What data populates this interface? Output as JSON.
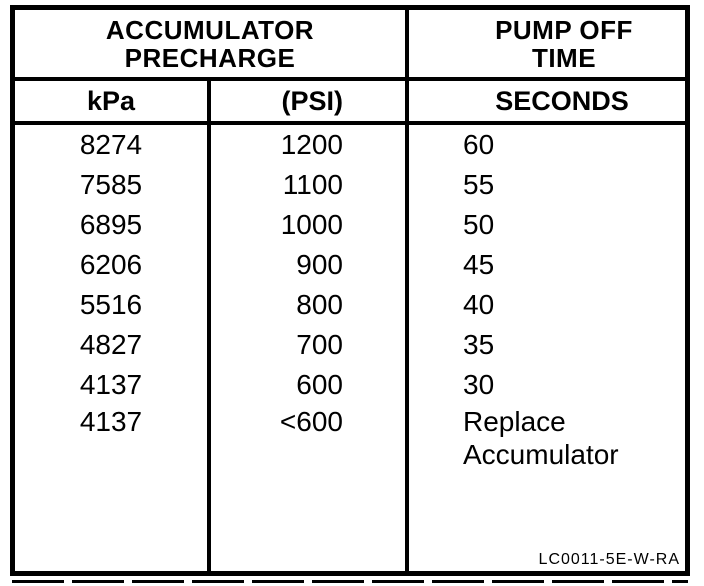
{
  "page": {
    "background": "#ffffff",
    "ink_color": "#000000"
  },
  "table": {
    "header_groups": [
      {
        "lines": [
          "ACCUMULATOR",
          "PRECHARGE"
        ]
      },
      {
        "lines": [
          "PUMP OFF",
          "TIME"
        ]
      }
    ],
    "column_headers": [
      "kPa",
      "(PSI)",
      "SECONDS"
    ],
    "rows": [
      {
        "kpa": "8274",
        "psi": "1200",
        "seconds": "60"
      },
      {
        "kpa": "7585",
        "psi": "1100",
        "seconds": "55"
      },
      {
        "kpa": "6895",
        "psi": "1000",
        "seconds": "50"
      },
      {
        "kpa": "6206",
        "psi": "900",
        "seconds": "45"
      },
      {
        "kpa": "5516",
        "psi": "800",
        "seconds": "40"
      },
      {
        "kpa": "4827",
        "psi": "700",
        "seconds": "35"
      },
      {
        "kpa": "4137",
        "psi": "600",
        "seconds": "30"
      },
      {
        "kpa": "4137",
        "psi": "<600",
        "seconds": "Replace Accumulator"
      }
    ],
    "figure_code": "LC0011-5E-W-RA"
  }
}
